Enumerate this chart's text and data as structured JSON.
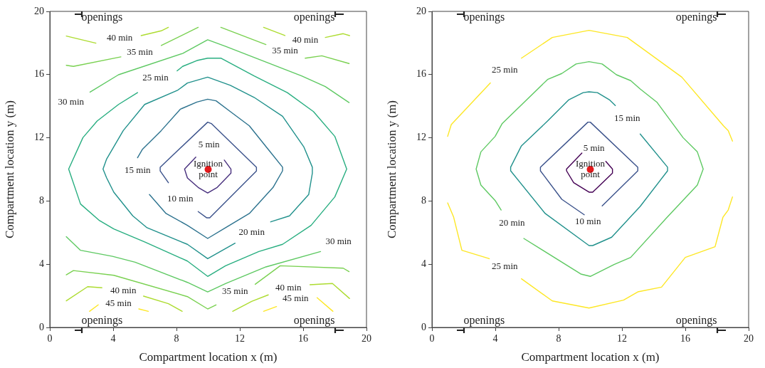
{
  "chart_data": [
    {
      "type": "line",
      "xlabel": "Compartment location x (m)",
      "ylabel": "Compartment location y (m)",
      "xlim": [
        0,
        20
      ],
      "ylim": [
        0,
        20
      ],
      "xticks": [
        0,
        4,
        8,
        12,
        16,
        20
      ],
      "yticks": [
        0,
        4,
        8,
        12,
        16,
        20
      ],
      "grid": false,
      "marker": "none",
      "series": [
        {
          "color": "#472f7d",
          "x": [
            9.22,
            8.51,
            8.69,
            9.37,
            9.97,
            10.57,
            11.44,
            11.44,
            11.02
          ],
          "values": [
            10.78,
            10.02,
            9.46,
            8.86,
            8.51,
            8.86,
            9.76,
            10.02,
            10.59
          ]
        },
        {
          "color": "#3b528b",
          "x": [
            7.49,
            6.97,
            6.97,
            9.97,
            10.2,
            13.05,
            13.05,
            10.1,
            9.9,
            9.37
          ],
          "values": [
            9.16,
            9.9,
            10.14,
            12.99,
            12.9,
            10.14,
            9.9,
            6.94,
            6.94,
            7.33
          ]
        },
        {
          "color": "#2c728e",
          "x": [
            5.54,
            5.84,
            7.04,
            8.24,
            9.29,
            9.97,
            10.5,
            11.4,
            12.6,
            13.8,
            14.7,
            14.7,
            14.1,
            12.6,
            11.1,
            9.97,
            8.69,
            7.34,
            6.29
          ],
          "values": [
            10.74,
            11.26,
            12.46,
            13.81,
            14.26,
            14.44,
            14.34,
            13.66,
            12.76,
            11.26,
            10.14,
            9.91,
            8.86,
            7.21,
            6.31,
            5.63,
            6.46,
            7.21,
            8.41
          ]
        },
        {
          "color": "#21918c",
          "x": [
            13.95,
            15.14,
            16.35,
            16.58,
            16.58,
            16.05,
            14.7,
            12.9,
            11.4,
            9.97,
            8.69,
            8.09,
            5.99,
            4.64,
            3.59,
            3.36,
            3.59,
            4.04,
            5.24,
            6.14,
            8.69,
            9.97,
            11.7
          ],
          "values": [
            6.68,
            7.06,
            8.41,
            9.76,
            10.14,
            11.41,
            13.36,
            14.56,
            15.32,
            15.84,
            15.47,
            15.02,
            14.11,
            12.46,
            10.66,
            10.02,
            9.46,
            8.56,
            7.06,
            6.31,
            5.26,
            4.35,
            5.33
          ]
        },
        {
          "color": "#28ae80",
          "x": [
            5.54,
            4.34,
            2.99,
            2.09,
            1.19,
            1.94,
            3.14,
            4.04,
            5.99,
            8.69,
            9.97,
            11.1,
            13.2,
            14.7,
            16.5,
            18.0,
            18.75,
            18.0,
            16.65,
            15.0,
            12.9,
            10.8,
            9.97,
            9.29,
            8.39,
            8.04
          ],
          "values": [
            14.86,
            14.11,
            13.06,
            12.01,
            10.02,
            7.81,
            6.76,
            6.23,
            5.41,
            4.2,
            3.23,
            3.9,
            4.8,
            5.26,
            6.46,
            8.26,
            10.02,
            12.09,
            13.66,
            14.86,
            15.92,
            17.04,
            17.04,
            16.89,
            16.52,
            16.24
          ]
        },
        {
          "color": "#5ec962",
          "x": [
            2.54,
            4.34,
            8.39,
            9.97,
            11.1,
            15.9,
            17.4,
            18.9
          ],
          "values": [
            14.89,
            15.99,
            17.34,
            18.2,
            17.79,
            15.92,
            15.24,
            14.23
          ]
        },
        {
          "color": "#5ec962",
          "x": [
            1.04,
            1.94,
            3.96,
            5.39,
            8.69,
            9.97,
            11.1,
            13.65,
            17.1
          ],
          "values": [
            5.74,
            4.88,
            4.5,
            4.13,
            2.85,
            2.25,
            2.78,
            3.83,
            4.8
          ]
        },
        {
          "color": "#7ad151",
          "x": [
            1.04,
            1.49,
            4.49
          ],
          "values": [
            16.59,
            16.52,
            17.12
          ]
        },
        {
          "color": "#7ad151",
          "x": [
            7.04,
            9.37
          ],
          "values": [
            17.84,
            18.99
          ]
        },
        {
          "color": "#7ad151",
          "x": [
            10.8,
            13.65
          ],
          "values": [
            18.99,
            17.9
          ]
        },
        {
          "color": "#7ad151",
          "x": [
            16.13,
            17.18,
            18.9
          ],
          "values": [
            17.04,
            17.19,
            16.7
          ]
        },
        {
          "color": "#7ad151",
          "x": [
            1.04,
            1.49,
            4.04,
            8.69,
            9.97,
            10.5
          ],
          "values": [
            3.33,
            3.6,
            3.3,
            1.95,
            1.17,
            1.43
          ]
        },
        {
          "color": "#7ad151",
          "x": [
            12.97,
            14.55,
            18.53,
            18.9
          ],
          "values": [
            2.73,
            3.9,
            3.75,
            3.53
          ]
        },
        {
          "color": "#addc30",
          "x": [
            1.04,
            2.91
          ],
          "values": [
            18.44,
            17.99
          ]
        },
        {
          "color": "#addc30",
          "x": [
            5.77,
            7.04,
            7.49
          ],
          "values": [
            18.47,
            18.77,
            18.99
          ]
        },
        {
          "color": "#addc30",
          "x": [
            13.5,
            14.85
          ],
          "values": [
            18.99,
            18.47
          ]
        },
        {
          "color": "#addc30",
          "x": [
            17.4,
            18.53,
            18.93
          ],
          "values": [
            18.35,
            18.59,
            18.47
          ]
        },
        {
          "color": "#addc30",
          "x": [
            1.04,
            2.39,
            3.29
          ],
          "values": [
            1.68,
            2.58,
            2.51
          ]
        },
        {
          "color": "#addc30",
          "x": [
            5.92,
            7.49,
            8.36
          ],
          "values": [
            1.98,
            1.5,
            1.02
          ]
        },
        {
          "color": "#addc30",
          "x": [
            11.55,
            12.75,
            13.8
          ],
          "values": [
            1.02,
            1.65,
            2.06
          ]
        },
        {
          "color": "#addc30",
          "x": [
            16.43,
            17.85,
            18.93
          ],
          "values": [
            2.7,
            2.78,
            1.83
          ]
        },
        {
          "color": "#fde725",
          "x": [
            2.51,
            3.06
          ],
          "values": [
            1.02,
            1.43
          ]
        },
        {
          "color": "#fde725",
          "x": [
            5.62,
            6.22
          ],
          "values": [
            1.17,
            1.02
          ]
        },
        {
          "color": "#fde725",
          "x": [
            13.5,
            14.32
          ],
          "values": [
            1.02,
            1.32
          ]
        },
        {
          "color": "#fde725",
          "x": [
            16.88,
            17.88
          ],
          "values": [
            1.88,
            1.02
          ]
        },
        {
          "type": "scatter",
          "marker": "circle",
          "color": "#e31a1c",
          "x": [
            10
          ],
          "values": [
            10
          ]
        }
      ],
      "annotations": [
        "openings",
        "openings",
        "openings",
        "openings",
        {
          "text": "Ignition point",
          "x": 10,
          "y": 10
        },
        {
          "text": "5 min",
          "x": 10.05,
          "y": 11.53
        },
        {
          "text": "10 min",
          "x": 8.24,
          "y": 8.11
        },
        {
          "text": "15 min",
          "x": 5.54,
          "y": 9.95
        },
        {
          "text": "20 min",
          "x": 12.75,
          "y": 6.0
        },
        {
          "text": "25 min",
          "x": 6.67,
          "y": 15.77
        },
        {
          "text": "30 min",
          "x": 1.34,
          "y": 14.26
        },
        {
          "text": "30 min",
          "x": 18.23,
          "y": 5.41
        },
        {
          "text": "35 min",
          "x": 5.69,
          "y": 17.42
        },
        {
          "text": "35 min",
          "x": 14.85,
          "y": 17.49
        },
        {
          "text": "35 min",
          "x": 11.7,
          "y": 2.25
        },
        {
          "text": "40 min",
          "x": 4.41,
          "y": 18.32
        },
        {
          "text": "40 min",
          "x": 16.13,
          "y": 18.17
        },
        {
          "text": "40 min",
          "x": 4.64,
          "y": 2.33
        },
        {
          "text": "40 min",
          "x": 15.07,
          "y": 2.48
        },
        {
          "text": "45 min",
          "x": 4.34,
          "y": 1.5
        },
        {
          "text": "45 min",
          "x": 15.52,
          "y": 1.8
        }
      ]
    },
    {
      "type": "line",
      "xlabel": "Compartment location x (m)",
      "ylabel": "Compartment location y (m)",
      "xlim": [
        0,
        20
      ],
      "ylim": [
        0,
        20
      ],
      "xticks": [
        0,
        4,
        8,
        12,
        16,
        20
      ],
      "yticks": [
        0,
        4,
        8,
        12,
        16,
        20
      ],
      "grid": false,
      "marker": "none",
      "series": [
        {
          "color": "#440154",
          "x": [
            9.47,
            8.5,
            8.5,
            8.95,
            9.92,
            10.15,
            11.4,
            11.4,
            10.98
          ],
          "values": [
            11.04,
            10.02,
            9.91,
            9.16,
            8.56,
            8.56,
            9.76,
            10.02,
            10.51
          ]
        },
        {
          "color": "#3b528b",
          "x": [
            10.75,
            13.0,
            13.0,
            10.0,
            9.85,
            6.85,
            6.85,
            8.2,
            9.62
          ],
          "values": [
            7.69,
            9.91,
            10.14,
            12.99,
            12.99,
            10.14,
            9.91,
            8.11,
            7.13
          ]
        },
        {
          "color": "#21918c",
          "x": [
            13.15,
            14.88,
            14.88,
            13.15,
            11.35,
            10.15,
            9.92,
            7.15,
            4.97,
            4.97,
            5.65,
            7.3,
            8.65,
            9.55,
            9.92,
            10.45,
            11.2,
            11.58
          ],
          "values": [
            12.24,
            10.14,
            9.91,
            7.66,
            5.71,
            5.18,
            5.18,
            7.21,
            9.91,
            10.14,
            11.49,
            13.06,
            14.41,
            14.86,
            14.91,
            14.86,
            14.41,
            14.04
          ]
        },
        {
          "color": "#5ec962",
          "x": [
            4.37,
            3.99,
            3.09,
            2.79,
            3.09,
            3.99,
            4.44,
            7.3,
            8.2,
            9.1,
            9.92,
            10.75,
            11.65,
            12.55,
            13.15,
            14.2,
            15.86,
            16.76,
            17.13,
            16.76,
            14.8,
            12.55,
            11.5,
            10.0,
            9.4,
            5.8
          ],
          "values": [
            7.43,
            8.03,
            9.01,
            10.02,
            11.11,
            12.09,
            12.91,
            15.69,
            16.07,
            16.67,
            16.82,
            16.67,
            15.99,
            15.62,
            15.09,
            14.26,
            12.01,
            11.11,
            10.02,
            9.01,
            6.91,
            4.43,
            3.98,
            3.23,
            3.38,
            5.63
          ]
        },
        {
          "color": "#fde725",
          "x": [
            0.99,
            1.22,
            3.69
          ],
          "values": [
            12.09,
            12.84,
            15.47
          ]
        },
        {
          "color": "#fde725",
          "x": [
            5.65,
            7.6,
            9.92,
            12.33,
            15.78,
            18.41,
            18.71,
            18.98
          ],
          "values": [
            17.04,
            18.35,
            18.8,
            18.35,
            15.84,
            12.76,
            12.46,
            11.79
          ]
        },
        {
          "color": "#fde725",
          "x": [
            0.99,
            1.37,
            1.89,
            3.62
          ],
          "values": [
            7.88,
            6.98,
            4.88,
            4.35
          ]
        },
        {
          "color": "#fde725",
          "x": [
            5.65,
            7.6,
            9.92,
            12.1,
            13.0,
            14.5,
            16.0,
            17.88,
            18.38,
            18.71,
            18.98
          ],
          "values": [
            3.08,
            1.68,
            1.23,
            1.73,
            2.25,
            2.55,
            4.43,
            5.11,
            6.98,
            7.43,
            8.26
          ]
        },
        {
          "type": "scatter",
          "marker": "circle",
          "color": "#e31a1c",
          "x": [
            10
          ],
          "values": [
            10
          ]
        }
      ],
      "annotations": [
        "openings",
        "openings",
        "openings",
        "openings",
        {
          "text": "Ignition point",
          "x": 10,
          "y": 10
        },
        {
          "text": "5 min",
          "x": 10.23,
          "y": 11.34
        },
        {
          "text": "10 min",
          "x": 9.85,
          "y": 6.7
        },
        {
          "text": "15 min",
          "x": 12.33,
          "y": 13.21
        },
        {
          "text": "20 min",
          "x": 5.05,
          "y": 6.61
        },
        {
          "text": "25 min",
          "x": 4.6,
          "y": 16.29
        },
        {
          "text": "25 min",
          "x": 4.6,
          "y": 3.83
        }
      ]
    }
  ]
}
